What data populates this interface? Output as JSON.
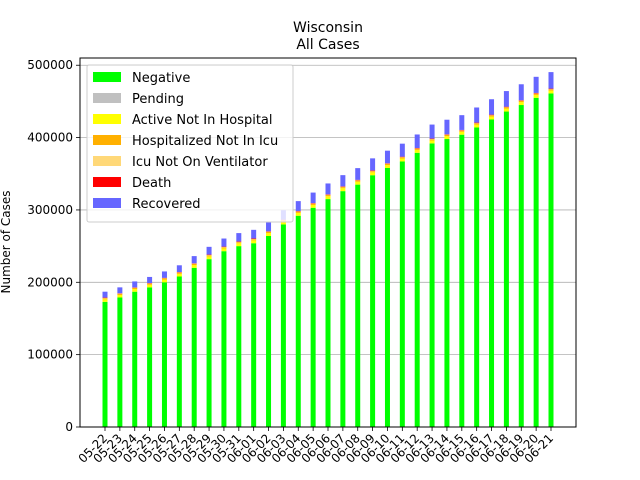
{
  "chart_data": {
    "type": "bar",
    "stacked": true,
    "title": "Wisconsin",
    "subtitle": "All Cases",
    "xlabel": "",
    "ylabel": "Number of Cases",
    "ylim": [
      0,
      510000
    ],
    "yticks": [
      0,
      100000,
      200000,
      300000,
      400000,
      500000
    ],
    "grid": "horizontal",
    "legend_position": "top-left",
    "categories": [
      "05-22",
      "05-23",
      "05-24",
      "05-25",
      "05-26",
      "05-27",
      "05-28",
      "05-29",
      "05-30",
      "05-31",
      "06-01",
      "06-02",
      "06-03",
      "06-04",
      "06-05",
      "06-06",
      "06-07",
      "06-08",
      "06-09",
      "06-10",
      "06-11",
      "06-12",
      "06-13",
      "06-14",
      "06-15",
      "06-16",
      "06-17",
      "06-18",
      "06-19",
      "06-20",
      "06-21"
    ],
    "series": [
      {
        "name": "Negative",
        "color": "#00ff00",
        "values": [
          173000,
          179000,
          187000,
          193000,
          200000,
          208000,
          220000,
          232000,
          243000,
          250000,
          254000,
          264000,
          280000,
          292000,
          303000,
          315000,
          326000,
          335000,
          348000,
          358000,
          367000,
          379000,
          392000,
          398000,
          404000,
          414000,
          425000,
          436000,
          445000,
          455000,
          461000
        ]
      },
      {
        "name": "Pending",
        "color": "#c0c0c0",
        "values": [
          0,
          0,
          0,
          0,
          0,
          0,
          0,
          0,
          0,
          0,
          0,
          0,
          0,
          0,
          0,
          0,
          0,
          0,
          0,
          0,
          0,
          0,
          0,
          0,
          0,
          0,
          0,
          0,
          0,
          0,
          0
        ]
      },
      {
        "name": "Active Not In Hospital",
        "color": "#ffff00",
        "values": [
          3500,
          3500,
          3600,
          3600,
          3700,
          3700,
          3800,
          3800,
          3800,
          3900,
          3900,
          3900,
          3900,
          3900,
          3900,
          4000,
          4000,
          4000,
          4000,
          4000,
          4000,
          4000,
          4000,
          4000,
          4000,
          4000,
          4000,
          4000,
          4000,
          4000,
          4000
        ]
      },
      {
        "name": "Hospitalized Not In Icu",
        "color": "#ffb000",
        "values": [
          1500,
          1500,
          1500,
          1500,
          1600,
          1600,
          1600,
          1600,
          1600,
          1600,
          1600,
          1600,
          1600,
          1600,
          1600,
          1600,
          1600,
          1600,
          1600,
          1600,
          1600,
          1600,
          1600,
          1600,
          1600,
          1600,
          1600,
          1600,
          1600,
          1600,
          1600
        ]
      },
      {
        "name": "Icu Not On Ventilator",
        "color": "#ffd878",
        "values": [
          400,
          400,
          400,
          400,
          400,
          400,
          400,
          400,
          400,
          400,
          400,
          400,
          400,
          400,
          400,
          400,
          400,
          400,
          400,
          400,
          400,
          400,
          400,
          400,
          400,
          400,
          400,
          400,
          400,
          400,
          400
        ]
      },
      {
        "name": "Death",
        "color": "#ff0000",
        "values": [
          500,
          500,
          500,
          500,
          500,
          500,
          500,
          500,
          500,
          500,
          600,
          600,
          600,
          600,
          600,
          600,
          600,
          600,
          600,
          600,
          600,
          600,
          600,
          600,
          600,
          700,
          700,
          700,
          700,
          700,
          700
        ]
      },
      {
        "name": "Recovered",
        "color": "#6666ff",
        "values": [
          8100,
          8100,
          8200,
          8400,
          8800,
          9300,
          9900,
          10700,
          11200,
          11600,
          12000,
          12500,
          13100,
          13700,
          14500,
          15000,
          15500,
          16200,
          16700,
          17300,
          18000,
          18700,
          19400,
          20100,
          20400,
          20900,
          21300,
          21600,
          22000,
          22300,
          22800
        ]
      }
    ]
  }
}
